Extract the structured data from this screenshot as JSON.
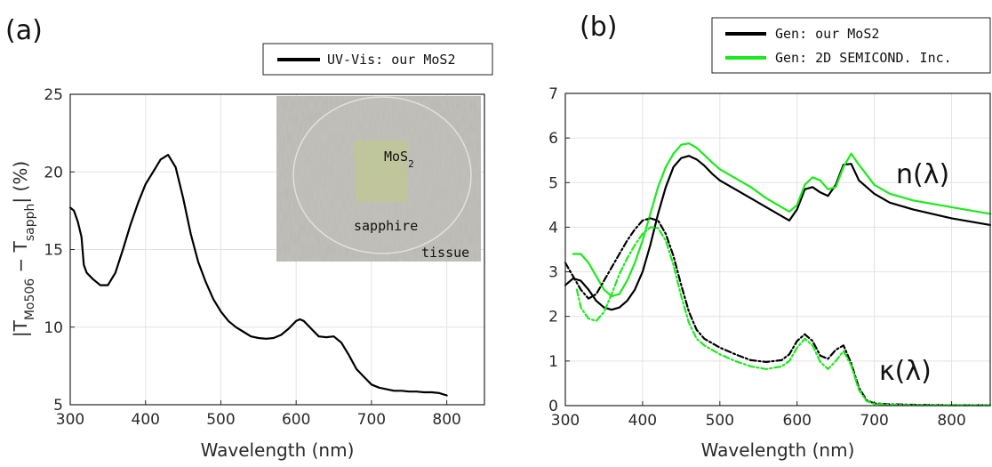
{
  "chart_data": [
    {
      "type": "line",
      "panel_label": "(a)",
      "xlabel": "Wavelength (nm)",
      "ylabel": "|T_Mo506 − T_sapph| (%)",
      "ylabel_parts": {
        "open": "|T",
        "sub1": "Mo506",
        "mid": " − T",
        "sub2": "sapph",
        "close": "| (%)"
      },
      "xlim": [
        300,
        850
      ],
      "ylim": [
        5,
        25
      ],
      "xticks": [
        300,
        400,
        500,
        600,
        700,
        800
      ],
      "yticks": [
        5,
        10,
        15,
        20,
        25
      ],
      "grid": true,
      "legend": {
        "placement": "top-right, above plot",
        "entries": [
          "UV-Vis: our MoS2"
        ]
      },
      "inset": {
        "labels": {
          "film_main": "MoS",
          "film_sub": "2",
          "substrate": "sapphire",
          "background": "tissue"
        }
      },
      "series": [
        {
          "name": "UV-Vis: our MoS2",
          "color": "#000000",
          "x": [
            300,
            305,
            310,
            315,
            318,
            322,
            330,
            340,
            350,
            360,
            370,
            380,
            390,
            400,
            410,
            420,
            430,
            440,
            450,
            460,
            470,
            480,
            490,
            500,
            510,
            520,
            530,
            540,
            550,
            560,
            570,
            580,
            590,
            600,
            605,
            610,
            620,
            630,
            640,
            650,
            660,
            670,
            680,
            690,
            700,
            710,
            720,
            730,
            740,
            750,
            760,
            770,
            780,
            790,
            800
          ],
          "y": [
            17.7,
            17.5,
            16.8,
            15.8,
            14.0,
            13.5,
            13.1,
            12.7,
            12.7,
            13.5,
            15.0,
            16.6,
            18.0,
            19.2,
            20.0,
            20.8,
            21.1,
            20.3,
            18.3,
            16.0,
            14.2,
            12.9,
            11.8,
            11.0,
            10.4,
            10.0,
            9.7,
            9.4,
            9.3,
            9.25,
            9.3,
            9.5,
            9.9,
            10.4,
            10.5,
            10.4,
            9.9,
            9.4,
            9.35,
            9.4,
            9.0,
            8.2,
            7.3,
            6.8,
            6.3,
            6.1,
            6.0,
            5.9,
            5.9,
            5.85,
            5.85,
            5.8,
            5.8,
            5.75,
            5.6
          ]
        }
      ]
    },
    {
      "type": "line",
      "panel_label": "(b)",
      "xlabel": "Wavelength (nm)",
      "ylabel": "",
      "xlim": [
        300,
        850
      ],
      "ylim": [
        0,
        7
      ],
      "xticks": [
        300,
        400,
        500,
        600,
        700,
        800
      ],
      "yticks": [
        0,
        1,
        2,
        3,
        4,
        5,
        6,
        7
      ],
      "grid": true,
      "legend": {
        "placement": "top-right, above plot",
        "entries": [
          "Gen: our MoS2",
          "Gen: 2D SEMICOND. Inc."
        ]
      },
      "annotations": [
        "n(λ)",
        "κ(λ)"
      ],
      "series": [
        {
          "name": "Gen: our MoS2",
          "component": "n",
          "color": "#000000",
          "dashed": false,
          "x": [
            300,
            310,
            320,
            330,
            340,
            350,
            360,
            370,
            380,
            390,
            400,
            410,
            420,
            430,
            440,
            450,
            460,
            470,
            480,
            490,
            500,
            520,
            540,
            560,
            580,
            590,
            600,
            610,
            620,
            630,
            640,
            650,
            660,
            670,
            680,
            700,
            720,
            750,
            800,
            850
          ],
          "y": [
            2.7,
            2.85,
            2.8,
            2.6,
            2.35,
            2.2,
            2.15,
            2.2,
            2.35,
            2.6,
            3.0,
            3.6,
            4.3,
            4.9,
            5.35,
            5.55,
            5.6,
            5.52,
            5.38,
            5.2,
            5.05,
            4.85,
            4.65,
            4.45,
            4.25,
            4.15,
            4.4,
            4.85,
            4.9,
            4.78,
            4.7,
            4.95,
            5.4,
            5.42,
            5.05,
            4.75,
            4.55,
            4.4,
            4.2,
            4.05
          ]
        },
        {
          "name": "Gen: 2D SEMICOND. Inc.",
          "component": "n",
          "color": "#1aeb1a",
          "dashed": false,
          "x": [
            310,
            320,
            330,
            340,
            350,
            360,
            370,
            380,
            390,
            400,
            410,
            420,
            430,
            440,
            450,
            460,
            470,
            480,
            490,
            500,
            520,
            540,
            560,
            580,
            590,
            600,
            610,
            620,
            630,
            640,
            650,
            660,
            670,
            680,
            700,
            720,
            750,
            800,
            850
          ],
          "y": [
            3.4,
            3.4,
            3.2,
            2.9,
            2.6,
            2.45,
            2.5,
            2.8,
            3.2,
            3.7,
            4.3,
            4.9,
            5.35,
            5.65,
            5.85,
            5.88,
            5.78,
            5.62,
            5.45,
            5.3,
            5.1,
            4.9,
            4.65,
            4.45,
            4.35,
            4.5,
            4.95,
            5.12,
            5.05,
            4.85,
            4.9,
            5.35,
            5.65,
            5.4,
            4.95,
            4.75,
            4.6,
            4.45,
            4.3
          ]
        },
        {
          "name": "Gen: our MoS2",
          "component": "k",
          "color": "#000000",
          "dashed": true,
          "x": [
            300,
            310,
            320,
            330,
            340,
            350,
            360,
            370,
            380,
            390,
            400,
            410,
            420,
            430,
            440,
            450,
            460,
            470,
            480,
            490,
            500,
            520,
            540,
            560,
            580,
            590,
            600,
            610,
            620,
            630,
            640,
            650,
            660,
            670,
            680,
            690,
            700,
            720,
            750,
            800,
            850
          ],
          "y": [
            3.2,
            2.9,
            2.6,
            2.4,
            2.5,
            2.8,
            3.1,
            3.4,
            3.7,
            3.95,
            4.15,
            4.2,
            4.15,
            3.85,
            3.35,
            2.7,
            2.1,
            1.7,
            1.5,
            1.4,
            1.3,
            1.15,
            1.02,
            0.98,
            1.02,
            1.15,
            1.45,
            1.6,
            1.45,
            1.12,
            1.05,
            1.25,
            1.35,
            0.95,
            0.4,
            0.12,
            0.05,
            0.03,
            0.02,
            0.01,
            0.01
          ]
        },
        {
          "name": "Gen: 2D SEMICOND. Inc.",
          "component": "k",
          "color": "#1aeb1a",
          "dashed": true,
          "x": [
            315,
            320,
            330,
            340,
            350,
            360,
            370,
            380,
            390,
            400,
            410,
            420,
            430,
            440,
            450,
            460,
            470,
            480,
            490,
            500,
            520,
            540,
            560,
            580,
            590,
            600,
            610,
            620,
            630,
            640,
            650,
            660,
            670,
            680,
            690,
            700,
            720,
            750,
            800,
            850
          ],
          "y": [
            2.6,
            2.2,
            1.95,
            1.9,
            2.1,
            2.5,
            2.95,
            3.3,
            3.6,
            3.85,
            4.0,
            3.98,
            3.7,
            3.15,
            2.45,
            1.85,
            1.5,
            1.35,
            1.25,
            1.15,
            1.0,
            0.88,
            0.82,
            0.88,
            1.0,
            1.3,
            1.5,
            1.35,
            0.98,
            0.82,
            1.0,
            1.22,
            0.9,
            0.35,
            0.1,
            0.04,
            0.02,
            0.01,
            0.01,
            0.01
          ]
        }
      ]
    }
  ]
}
